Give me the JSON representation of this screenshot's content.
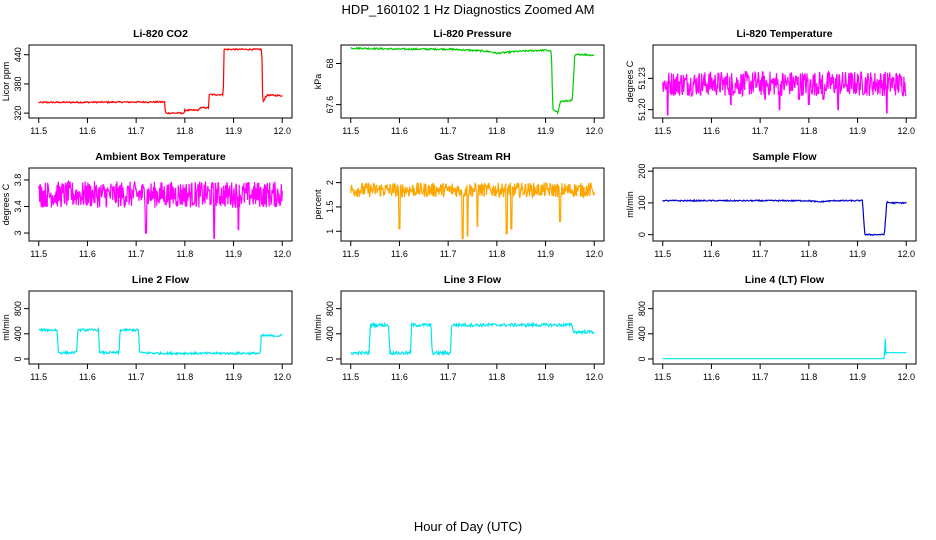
{
  "figure": {
    "title": "HDP_160102  1 Hz Diagnostics Zoomed AM",
    "xlabel": "Hour of Day (UTC)"
  },
  "chart_data": [
    {
      "id": "co2",
      "type": "line",
      "title": "Li-820 CO2",
      "ylabel": "Licor ppm",
      "color": "#ff0000",
      "noise": 1.5,
      "xlim": [
        11.48,
        12.02
      ],
      "ylim": [
        310,
        460
      ],
      "xticks": [
        11.5,
        11.6,
        11.7,
        11.8,
        11.9,
        12.0
      ],
      "yticks": [
        320,
        380,
        440
      ],
      "x": [
        11.5,
        11.759,
        11.76,
        11.799,
        11.8,
        11.829,
        11.83,
        11.849,
        11.85,
        11.879,
        11.88,
        11.958,
        11.96,
        11.965,
        11.97,
        12.0
      ],
      "y": [
        342,
        343,
        320,
        320,
        326,
        326,
        331,
        331,
        358,
        358,
        451,
        451,
        340,
        353,
        357,
        356
      ]
    },
    {
      "id": "pressure",
      "type": "line",
      "title": "Li-820 Pressure",
      "ylabel": "kPa",
      "color": "#00cc00",
      "noise": 0.008,
      "xlim": [
        11.48,
        12.02
      ],
      "ylim": [
        67.47,
        68.18
      ],
      "xticks": [
        11.5,
        11.6,
        11.7,
        11.8,
        11.9,
        12.0
      ],
      "yticks": [
        67.6,
        68.0
      ],
      "x": [
        11.5,
        11.6,
        11.7,
        11.78,
        11.8,
        11.85,
        11.9,
        11.912,
        11.915,
        11.925,
        11.93,
        11.955,
        11.96,
        11.97,
        12.0
      ],
      "y": [
        68.15,
        68.14,
        68.14,
        68.12,
        68.1,
        68.12,
        68.13,
        68.12,
        67.55,
        67.52,
        67.63,
        67.64,
        68.08,
        68.09,
        68.08
      ]
    },
    {
      "id": "licor_temp",
      "type": "noise",
      "title": "Li-820 Temperature",
      "ylabel": "degrees C",
      "color": "#ff00ff",
      "base": 51.225,
      "spread": 0.012,
      "dips": [
        [
          11.51,
          51.195
        ],
        [
          11.64,
          51.205
        ],
        [
          11.71,
          51.21
        ],
        [
          11.74,
          51.2
        ],
        [
          11.78,
          51.21
        ],
        [
          11.8,
          51.205
        ],
        [
          11.83,
          51.21
        ],
        [
          11.86,
          51.2
        ],
        [
          11.96,
          51.197
        ]
      ],
      "xlim": [
        11.48,
        12.02
      ],
      "ylim": [
        51.192,
        51.262
      ],
      "xticks": [
        11.5,
        11.6,
        11.7,
        11.8,
        11.9,
        12.0
      ],
      "yticks": [
        51.2,
        51.23
      ],
      "ytick_labels": [
        "51.20",
        "51.23"
      ]
    },
    {
      "id": "box_temp",
      "type": "noise",
      "title": "Ambient Box Temperature",
      "ylabel": "degrees C",
      "color": "#ff00ff",
      "base": 3.58,
      "spread": 0.2,
      "dips": [
        [
          11.72,
          3.0
        ],
        [
          11.86,
          2.92
        ],
        [
          11.91,
          3.05
        ]
      ],
      "xlim": [
        11.48,
        12.02
      ],
      "ylim": [
        2.88,
        3.98
      ],
      "xticks": [
        11.5,
        11.6,
        11.7,
        11.8,
        11.9,
        12.0
      ],
      "yticks": [
        3.0,
        3.4,
        3.8
      ]
    },
    {
      "id": "rh",
      "type": "noise",
      "title": "Gas Stream RH",
      "ylabel": "percent",
      "color": "#ffa500",
      "base": 1.85,
      "spread": 0.15,
      "dips": [
        [
          11.6,
          1.05
        ],
        [
          11.73,
          0.85
        ],
        [
          11.74,
          0.9
        ],
        [
          11.76,
          1.1
        ],
        [
          11.82,
          0.95
        ],
        [
          11.83,
          1.05
        ],
        [
          11.93,
          1.2
        ]
      ],
      "xlim": [
        11.48,
        12.02
      ],
      "ylim": [
        0.8,
        2.3
      ],
      "xticks": [
        11.5,
        11.6,
        11.7,
        11.8,
        11.9,
        12.0
      ],
      "yticks": [
        1.0,
        1.5,
        2.0
      ]
    },
    {
      "id": "sample_flow",
      "type": "line",
      "title": "Sample Flow",
      "ylabel": "ml/min",
      "color": "#0000cc",
      "noise": 2,
      "xlim": [
        11.48,
        12.02
      ],
      "ylim": [
        -20,
        210
      ],
      "xticks": [
        11.5,
        11.6,
        11.7,
        11.8,
        11.9,
        12.0
      ],
      "yticks": [
        0,
        100,
        200
      ],
      "x": [
        11.5,
        11.8,
        11.82,
        11.85,
        11.91,
        11.915,
        11.955,
        11.96,
        11.97,
        12.0
      ],
      "y": [
        107,
        107,
        103,
        107,
        107,
        0,
        0,
        102,
        100,
        100
      ]
    },
    {
      "id": "line2",
      "type": "line",
      "title": "Line 2 Flow",
      "ylabel": "ml/min",
      "color": "#00e5ee",
      "noise": 18,
      "xlim": [
        11.48,
        12.02
      ],
      "ylim": [
        -80,
        1080
      ],
      "xticks": [
        11.5,
        11.6,
        11.7,
        11.8,
        11.9,
        12.0
      ],
      "yticks": [
        0,
        400,
        800
      ],
      "x": [
        11.5,
        11.538,
        11.54,
        11.578,
        11.58,
        11.623,
        11.625,
        11.665,
        11.667,
        11.705,
        11.707,
        11.75,
        11.955,
        11.957,
        12.0
      ],
      "y": [
        460,
        460,
        100,
        100,
        460,
        460,
        100,
        100,
        460,
        460,
        100,
        90,
        90,
        370,
        370
      ]
    },
    {
      "id": "line3",
      "type": "line",
      "title": "Line 3 Flow",
      "ylabel": "ml/min",
      "color": "#00e5ee",
      "noise": 25,
      "xlim": [
        11.48,
        12.02
      ],
      "ylim": [
        -80,
        1080
      ],
      "xticks": [
        11.5,
        11.6,
        11.7,
        11.8,
        11.9,
        12.0
      ],
      "yticks": [
        0,
        400,
        800
      ],
      "x": [
        11.5,
        11.538,
        11.54,
        11.578,
        11.58,
        11.623,
        11.625,
        11.665,
        11.667,
        11.705,
        11.707,
        11.955,
        11.957,
        12.0
      ],
      "y": [
        95,
        95,
        540,
        540,
        95,
        95,
        540,
        540,
        95,
        95,
        540,
        540,
        430,
        430
      ]
    },
    {
      "id": "line4",
      "type": "line",
      "title": "Line 4 (LT) Flow",
      "ylabel": "ml/min",
      "color": "#00e5ee",
      "noise": 0,
      "xlim": [
        11.48,
        12.02
      ],
      "ylim": [
        -80,
        1080
      ],
      "xticks": [
        11.5,
        11.6,
        11.7,
        11.8,
        11.9,
        12.0
      ],
      "yticks": [
        0,
        400,
        800
      ],
      "x": [
        11.5,
        11.955,
        11.957,
        11.958,
        11.96,
        12.0
      ],
      "y": [
        5,
        5,
        330,
        80,
        100,
        100
      ]
    }
  ]
}
